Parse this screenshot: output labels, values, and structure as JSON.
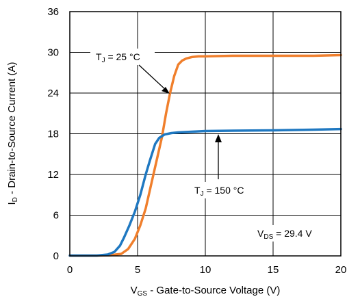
{
  "chart_data": {
    "type": "line",
    "xlabel": {
      "main": "V",
      "sub": "GS",
      "rest": " - Gate-to-Source Voltage (V)"
    },
    "ylabel": {
      "main": "I",
      "sub": "D",
      "rest": " - Drain-to-Source Current (A)"
    },
    "xlim": [
      0,
      20
    ],
    "ylim": [
      0,
      36
    ],
    "xticks": [
      "0",
      "5",
      "10",
      "15",
      "20"
    ],
    "yticks": [
      "0",
      "6",
      "12",
      "18",
      "24",
      "30",
      "36"
    ],
    "grid": true,
    "series": [
      {
        "name": "TJ = 25 °C",
        "color": "#f07f2c",
        "x": [
          0,
          2,
          3,
          3.8,
          4.3,
          4.8,
          5.2,
          5.6,
          6,
          6.4,
          6.8,
          7.1,
          7.4,
          7.7,
          8,
          8.3,
          8.6,
          9,
          9.5,
          10,
          12,
          15,
          18,
          20
        ],
        "y": [
          0.05,
          0.05,
          0.1,
          0.3,
          1,
          2.5,
          4.5,
          7,
          10.5,
          14,
          17.5,
          21,
          24,
          26.5,
          28.2,
          28.8,
          29.1,
          29.3,
          29.4,
          29.4,
          29.5,
          29.5,
          29.5,
          29.6
        ]
      },
      {
        "name": "TJ = 150 °C",
        "color": "#1f78c1",
        "x": [
          0,
          2,
          2.8,
          3.3,
          3.7,
          4,
          4.4,
          4.8,
          5.2,
          5.6,
          5.9,
          6.3,
          6.6,
          7,
          7.5,
          8,
          9,
          10,
          12,
          15,
          18,
          20
        ],
        "y": [
          0.05,
          0.05,
          0.2,
          0.6,
          1.5,
          2.7,
          4.5,
          6.5,
          9,
          12,
          14,
          16.5,
          17.4,
          17.9,
          18.1,
          18.2,
          18.3,
          18.4,
          18.45,
          18.5,
          18.6,
          18.7
        ]
      }
    ],
    "annotations": [
      {
        "id": "tj25",
        "main": "T",
        "sub": "J",
        "rest": " = 25 °C"
      },
      {
        "id": "tj150",
        "main": "T",
        "sub": "J",
        "rest": " = 150 °C"
      },
      {
        "id": "vds",
        "main": "V",
        "sub": "DS",
        "rest": " = 29.4 V"
      }
    ]
  }
}
